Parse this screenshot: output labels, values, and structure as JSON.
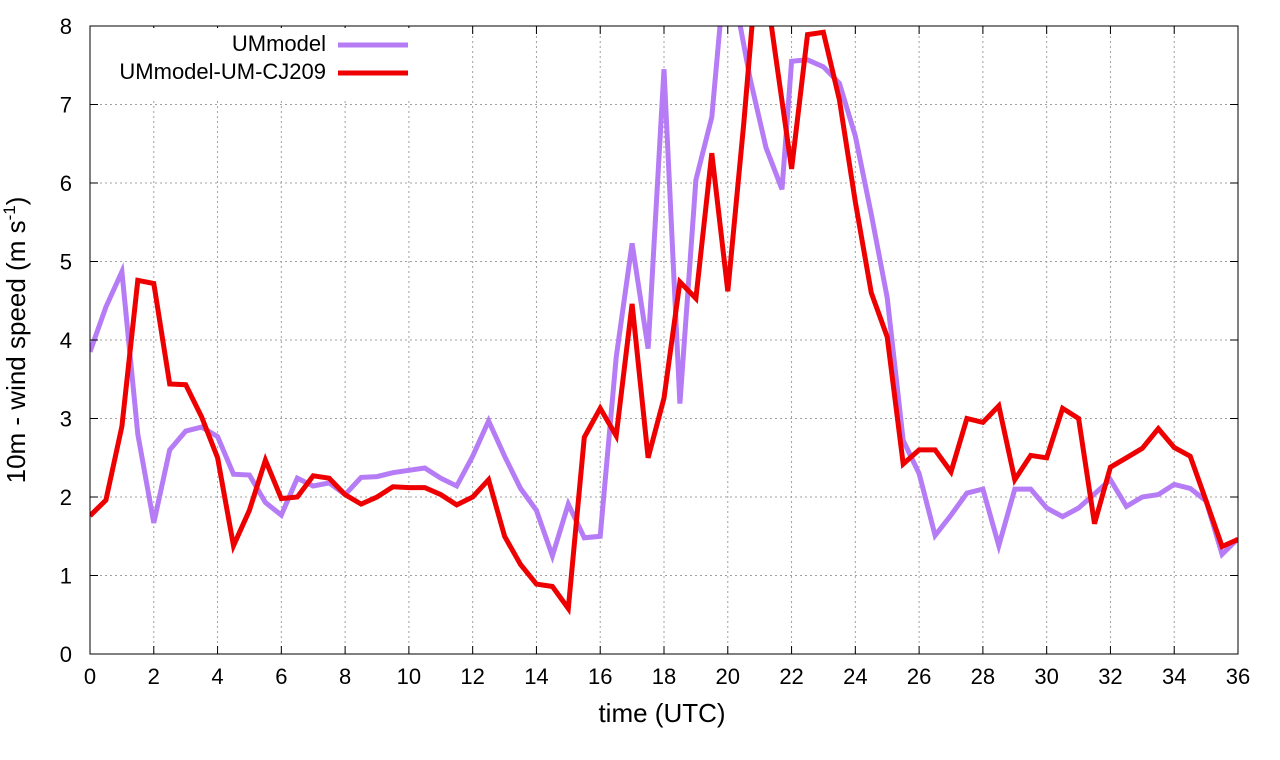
{
  "chart_data": {
    "type": "line",
    "title": "",
    "xlabel": "time (UTC)",
    "ylabel_main": "10m - wind speed  (m s",
    "ylabel_sup": "-1",
    "ylabel_end": ")",
    "xlim": [
      0,
      36
    ],
    "ylim": [
      0,
      8
    ],
    "xticks": [
      0,
      2,
      4,
      6,
      8,
      10,
      12,
      14,
      16,
      18,
      20,
      22,
      24,
      26,
      28,
      30,
      32,
      34,
      36
    ],
    "yticks": [
      0,
      1,
      2,
      3,
      4,
      5,
      6,
      7,
      8
    ],
    "grid": true,
    "legend_position": "top-left",
    "series": [
      {
        "name": "UMmodel",
        "color": "#b57cf5",
        "x": [
          0,
          0.5,
          1,
          1.5,
          2,
          2.5,
          3,
          3.5,
          4,
          4.5,
          5,
          5.5,
          6,
          6.5,
          7,
          7.5,
          8,
          8.5,
          9,
          9.5,
          10,
          10.5,
          11,
          11.5,
          12,
          12.5,
          13,
          13.5,
          14,
          14.5,
          15,
          15.5,
          16,
          16.5,
          17,
          17.5,
          18,
          18.5,
          19,
          19.5,
          19.8,
          20.3,
          20.7,
          21.2,
          21.7,
          22,
          22.5,
          23,
          23.5,
          24,
          24.5,
          25,
          25.5,
          26,
          26.5,
          27,
          27.5,
          28,
          28.5,
          29,
          29.5,
          30,
          30.5,
          31,
          31.5,
          32,
          32.5,
          33,
          33.5,
          34,
          34.5,
          35,
          35.5,
          36
        ],
        "values": [
          3.85,
          4.42,
          4.87,
          2.8,
          1.67,
          2.6,
          2.84,
          2.89,
          2.77,
          2.29,
          2.28,
          1.93,
          1.77,
          2.24,
          2.14,
          2.18,
          2.03,
          2.25,
          2.26,
          2.31,
          2.34,
          2.37,
          2.24,
          2.14,
          2.52,
          2.97,
          2.52,
          2.11,
          1.83,
          1.25,
          1.91,
          1.48,
          1.5,
          3.78,
          5.23,
          3.89,
          7.45,
          3.19,
          6.04,
          6.84,
          8.2,
          8.2,
          7.33,
          6.45,
          5.92,
          7.55,
          7.57,
          7.48,
          7.27,
          6.6,
          5.6,
          4.54,
          2.72,
          2.3,
          1.51,
          1.77,
          2.05,
          2.1,
          1.38,
          2.1,
          2.1,
          1.86,
          1.75,
          1.86,
          2.04,
          2.22,
          1.88,
          2.0,
          2.03,
          2.16,
          2.11,
          1.95,
          1.27,
          1.47
        ]
      },
      {
        "name": "UMmodel-UM-CJ209",
        "color": "#ee0000",
        "x": [
          0,
          0.5,
          1,
          1.5,
          2,
          2.5,
          3,
          3.5,
          4,
          4.5,
          5,
          5.5,
          6,
          6.5,
          7,
          7.5,
          8,
          8.5,
          9,
          9.5,
          10,
          10.5,
          11,
          11.5,
          12,
          12.5,
          13,
          13.5,
          14,
          14.5,
          15,
          15.5,
          16,
          16.5,
          17,
          17.5,
          18,
          18.5,
          19,
          19.5,
          20,
          20.5,
          20.8,
          21.3,
          21.5,
          22,
          22.5,
          23,
          23.5,
          24,
          24.5,
          25,
          25.5,
          26,
          26.5,
          27,
          27.5,
          28,
          28.5,
          29,
          29.5,
          30,
          30.5,
          31,
          31.5,
          32,
          32.5,
          33,
          33.5,
          34,
          34.5,
          35,
          35.5,
          36
        ],
        "values": [
          1.76,
          1.96,
          2.9,
          4.76,
          4.72,
          3.44,
          3.43,
          3.02,
          2.5,
          1.38,
          1.83,
          2.47,
          1.98,
          2.0,
          2.27,
          2.24,
          2.03,
          1.91,
          2.0,
          2.13,
          2.12,
          2.12,
          2.03,
          1.9,
          2.0,
          2.22,
          1.5,
          1.14,
          0.89,
          0.86,
          0.58,
          2.76,
          3.13,
          2.78,
          4.46,
          2.5,
          3.26,
          4.74,
          4.53,
          6.38,
          4.62,
          6.75,
          8.2,
          8.2,
          7.62,
          6.18,
          7.89,
          7.92,
          7.06,
          5.76,
          4.6,
          4.04,
          2.42,
          2.6,
          2.6,
          2.32,
          3.0,
          2.95,
          3.16,
          2.22,
          2.53,
          2.5,
          3.13,
          3.0,
          1.66,
          2.38,
          2.5,
          2.62,
          2.87,
          2.63,
          2.52,
          1.95,
          1.37,
          1.46
        ]
      }
    ]
  }
}
